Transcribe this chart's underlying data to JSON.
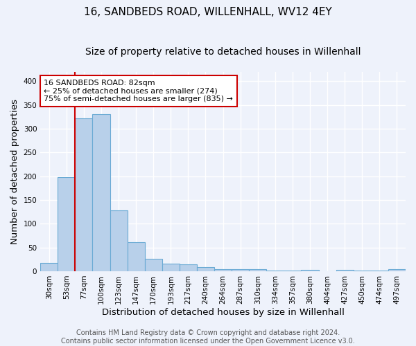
{
  "title": "16, SANDBEDS ROAD, WILLENHALL, WV12 4EY",
  "subtitle": "Size of property relative to detached houses in Willenhall",
  "xlabel": "Distribution of detached houses by size in Willenhall",
  "ylabel": "Number of detached properties",
  "bar_labels": [
    "30sqm",
    "53sqm",
    "77sqm",
    "100sqm",
    "123sqm",
    "147sqm",
    "170sqm",
    "193sqm",
    "217sqm",
    "240sqm",
    "264sqm",
    "287sqm",
    "310sqm",
    "334sqm",
    "357sqm",
    "380sqm",
    "404sqm",
    "427sqm",
    "450sqm",
    "474sqm",
    "497sqm"
  ],
  "bar_values": [
    18,
    198,
    322,
    330,
    128,
    61,
    26,
    16,
    14,
    8,
    5,
    4,
    5,
    2,
    2,
    3,
    0,
    3,
    1,
    2,
    5
  ],
  "bar_color": "#b8d0ea",
  "bar_edge_color": "#6aaad4",
  "red_line_index": 2,
  "red_line_color": "#cc0000",
  "annotation_text": "16 SANDBEDS ROAD: 82sqm\n← 25% of detached houses are smaller (274)\n75% of semi-detached houses are larger (835) →",
  "annotation_box_color": "#ffffff",
  "annotation_edge_color": "#cc0000",
  "bg_color": "#eef2fb",
  "grid_color": "#ffffff",
  "footer1": "Contains HM Land Registry data © Crown copyright and database right 2024.",
  "footer2": "Contains public sector information licensed under the Open Government Licence v3.0.",
  "ylim": [
    0,
    420
  ],
  "yticks": [
    0,
    50,
    100,
    150,
    200,
    250,
    300,
    350,
    400
  ],
  "title_fontsize": 11,
  "subtitle_fontsize": 10,
  "axis_label_fontsize": 9.5,
  "tick_fontsize": 7.5,
  "annotation_fontsize": 8,
  "footer_fontsize": 7
}
